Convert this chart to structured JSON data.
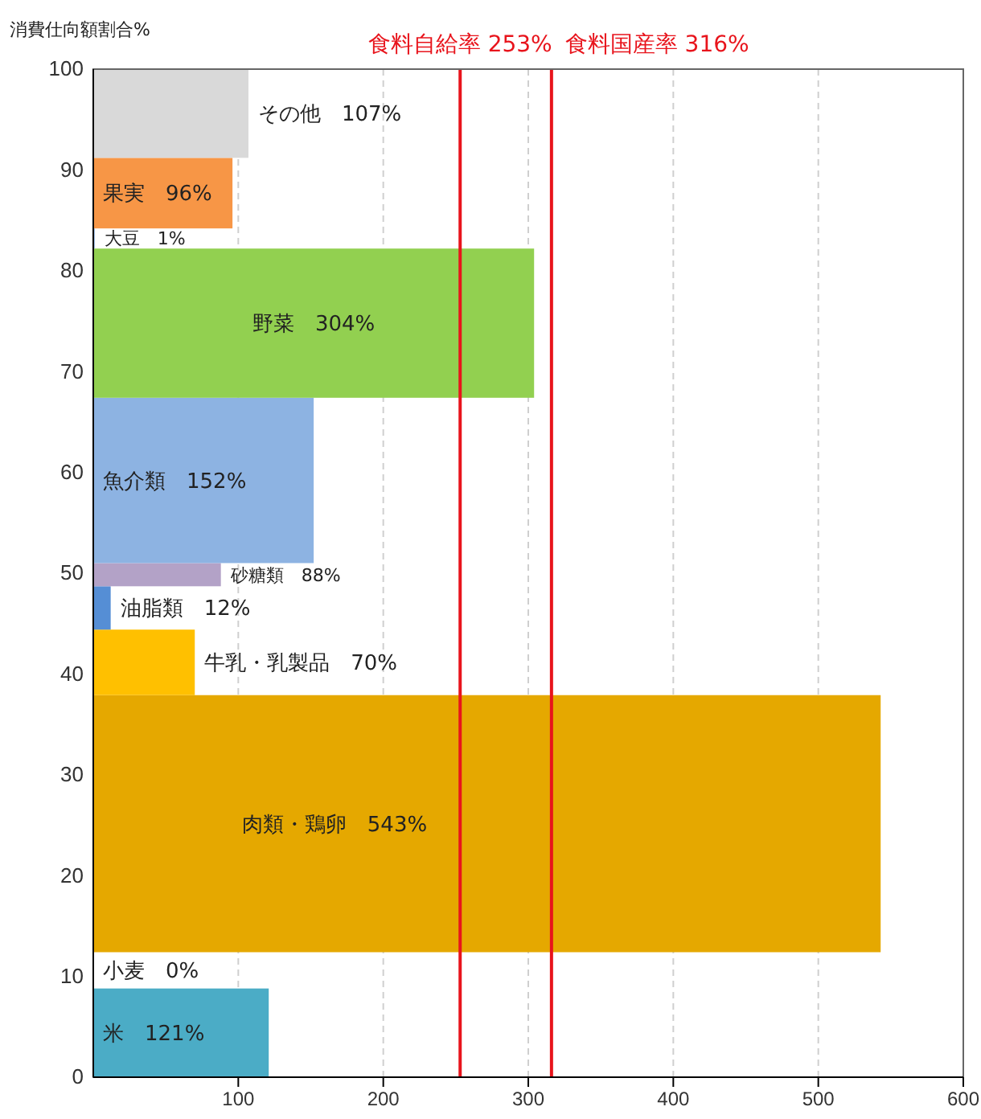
{
  "chart_data": {
    "type": "bar",
    "orientation": "horizontal",
    "ylabel": "消費仕向額割合%",
    "x": [
      4.4,
      10.6,
      25.15,
      41.15,
      46.55,
      49.85,
      59.2,
      74.8,
      83.2,
      87.7,
      95.6
    ],
    "values": [
      121,
      0,
      543,
      70,
      12,
      88,
      152,
      304,
      1,
      96,
      107
    ],
    "value_labels": [
      "米　121%",
      "小麦　0%",
      "肉類・鶏卵　543%",
      "牛乳・乳製品　70%",
      "油脂類　12%",
      "砂糖類　88%",
      "魚介類　152%",
      "野菜　304%",
      "大豆　1%",
      "果実　96%",
      "その他　107%"
    ],
    "colors": [
      "#4bacc6",
      "#e5a800",
      "#e5a800",
      "#ffc000",
      "#558ed5",
      "#b3a2c7",
      "#8db3e2",
      "#92d050",
      "#8db3e2",
      "#f79646",
      "#d9d9d9"
    ],
    "ref_lines": [
      {
        "axis": "x",
        "value": 253,
        "label": "食料自給率 253%",
        "color": "#e8141c"
      },
      {
        "axis": "x",
        "value": 316,
        "label": "食料国産率 316%",
        "color": "#e8141c"
      }
    ],
    "xlim": [
      0,
      600
    ],
    "xticks": [
      100,
      200,
      300,
      400,
      500,
      600
    ],
    "ylim": [
      0,
      100
    ],
    "yticks": [
      0,
      10,
      20,
      30,
      40,
      50,
      60,
      70,
      80,
      90,
      100
    ],
    "grid": "x"
  }
}
